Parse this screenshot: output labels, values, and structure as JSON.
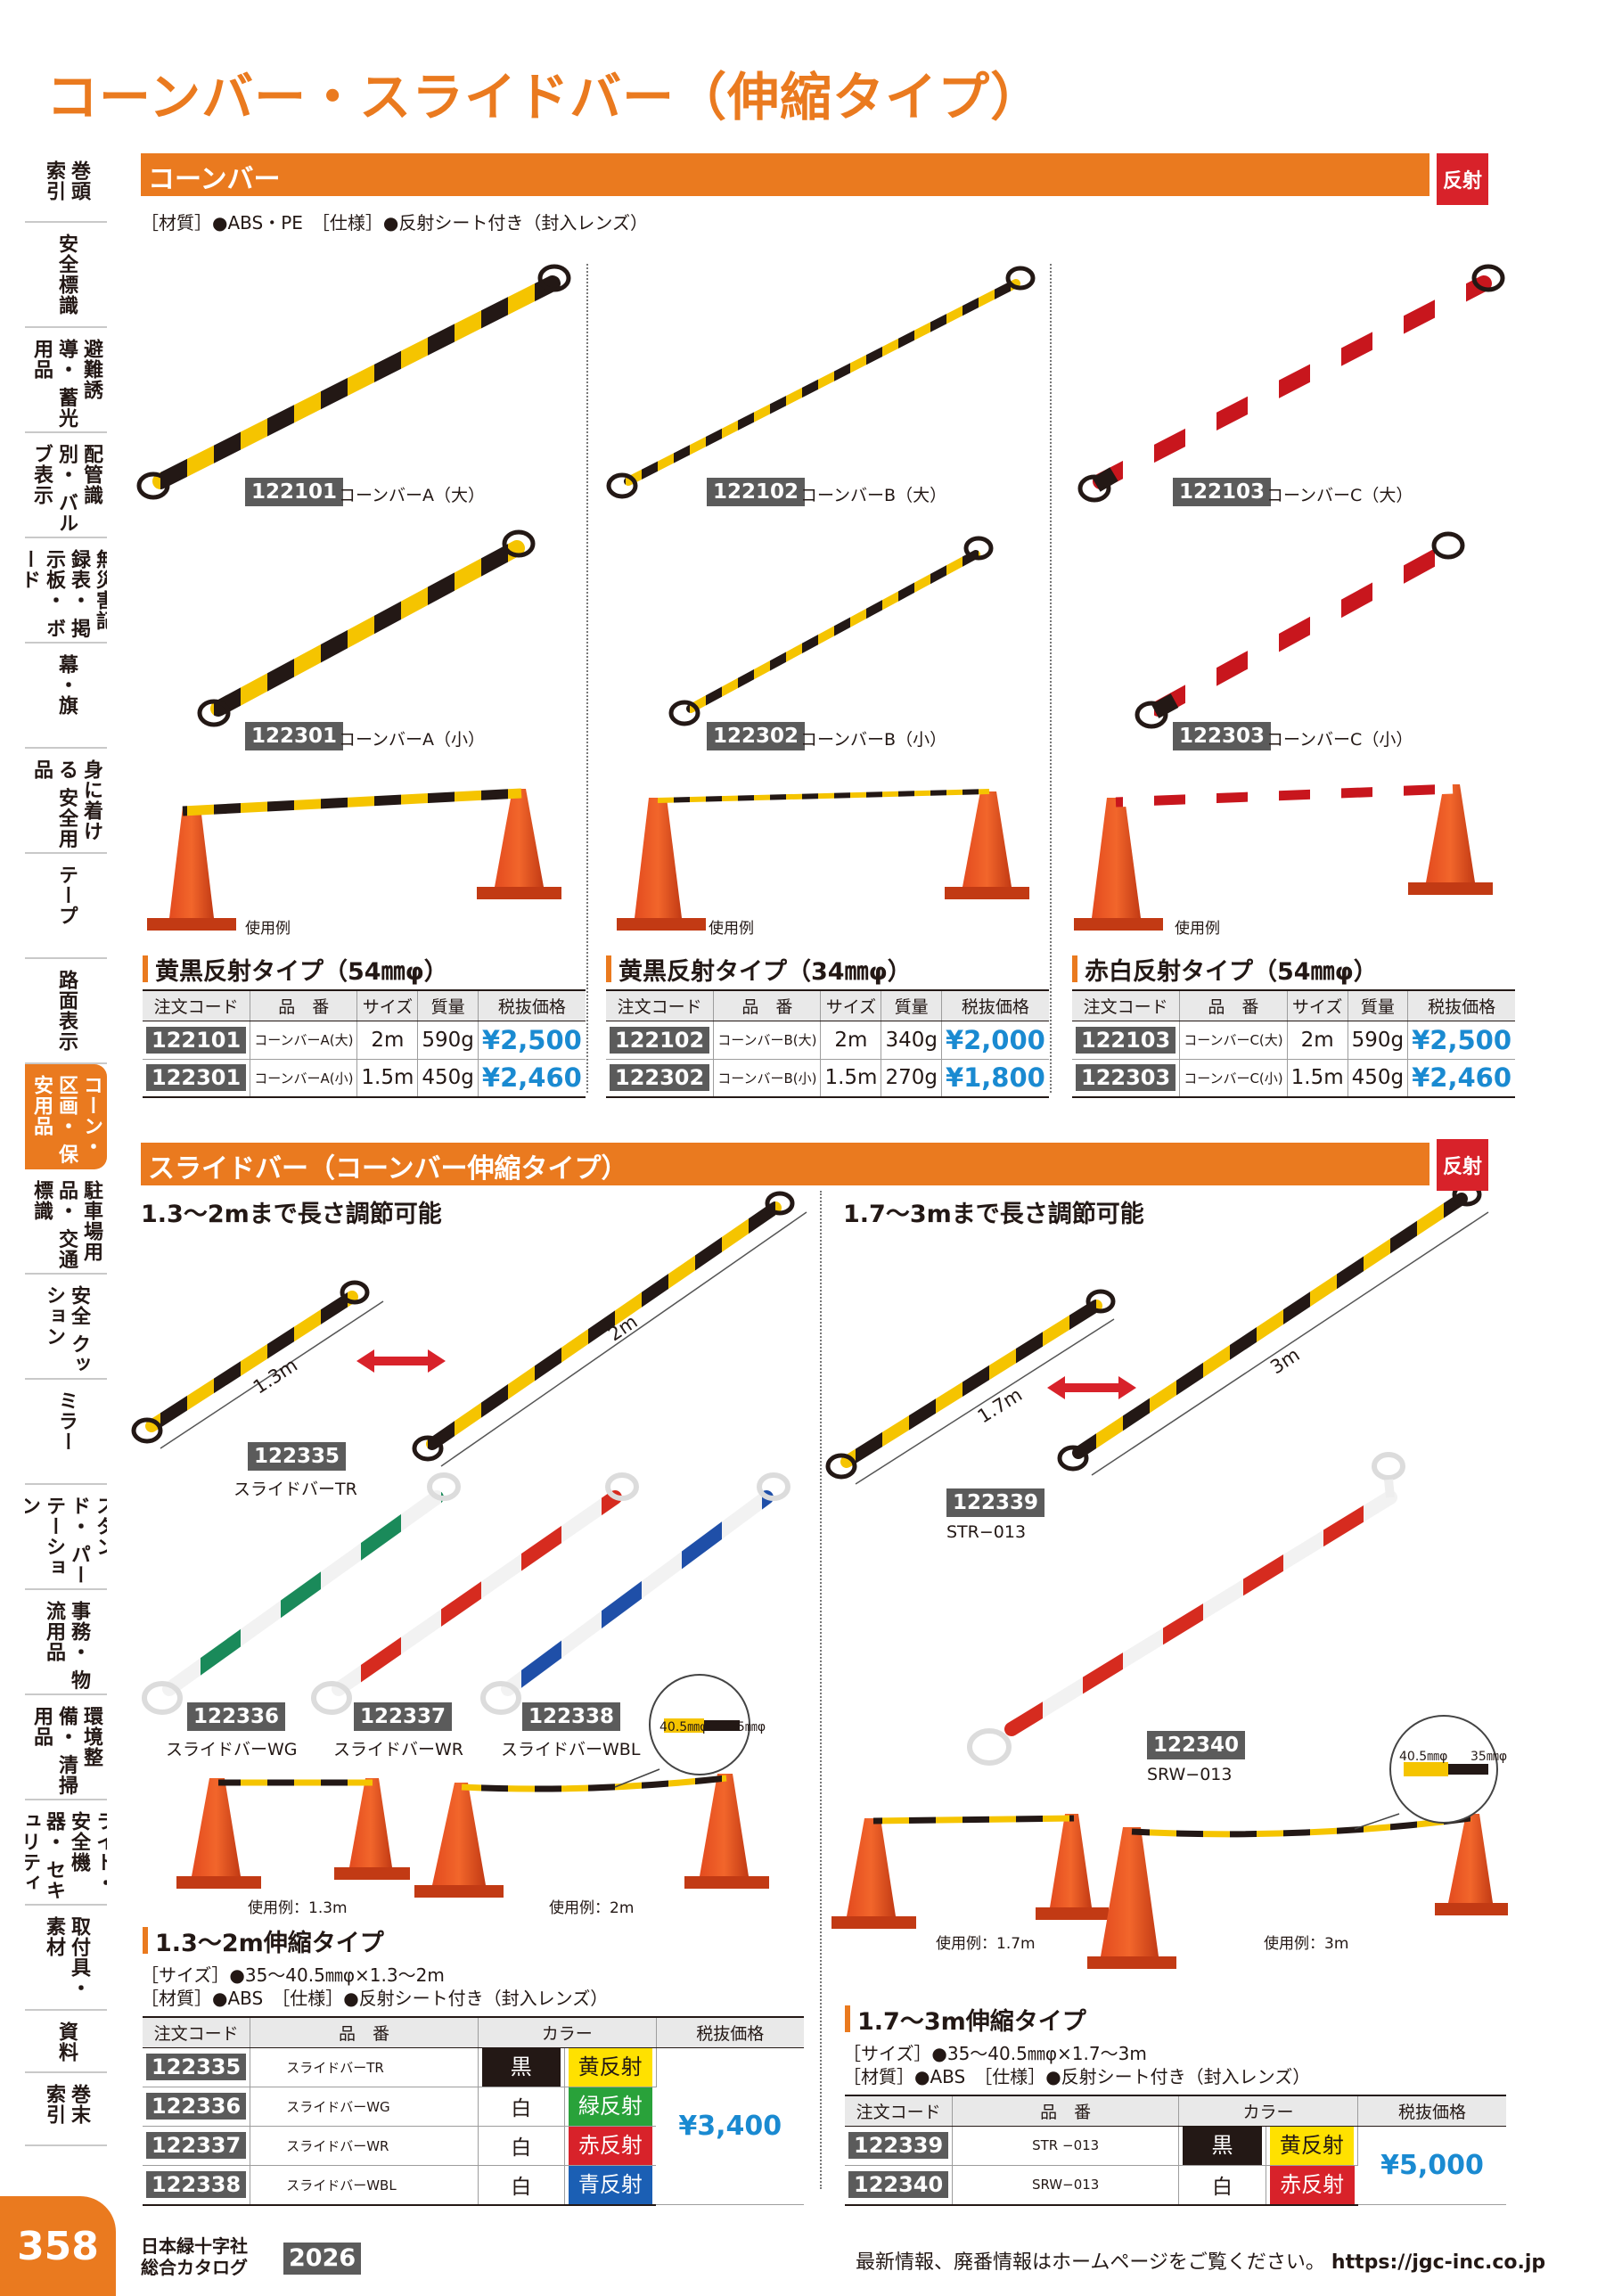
{
  "page_title": "コーンバー・スライドバー（伸縮タイプ）",
  "side_index": [
    {
      "label": "巻頭 索引"
    },
    {
      "label": "安全標識"
    },
    {
      "label": "避難誘導・ 蓄光用品"
    },
    {
      "label": "配管識別・ バルブ表示"
    },
    {
      "label": "無災害記録表・ 掲示板・ ボード"
    },
    {
      "label": "幕・旗"
    },
    {
      "label": "身に着ける 安全用品"
    },
    {
      "label": "テープ"
    },
    {
      "label": "路面表示"
    },
    {
      "label": "コーン・区画・ 保安用品"
    },
    {
      "label": "駐車場用品・ 交通標識"
    },
    {
      "label": "安全 クッション"
    },
    {
      "label": "ミラー"
    },
    {
      "label": "スタンド・ パーテーション"
    },
    {
      "label": "事務・ 物流用品"
    },
    {
      "label": "環境整備・ 清掃用品"
    },
    {
      "label": "ライト・ 安全機器・ セキュリティ"
    },
    {
      "label": "取付具・ 素材"
    },
    {
      "label": "資料"
    },
    {
      "label": "巻末 索引"
    }
  ],
  "cone_bar": {
    "section_title": "コーンバー",
    "badge": "反射",
    "spec": "［材質］●ABS・PE　［仕様］●反射シート付き（封入レンズ）",
    "usage_label": "使用例",
    "products": [
      {
        "code": "122101",
        "name": "コーンバーA（大）"
      },
      {
        "code": "122301",
        "name": "コーンバーA（小）"
      },
      {
        "code": "122102",
        "name": "コーンバーB（大）"
      },
      {
        "code": "122302",
        "name": "コーンバーB（小）"
      },
      {
        "code": "122103",
        "name": "コーンバーC（大）"
      },
      {
        "code": "122303",
        "name": "コーンバーC（小）"
      }
    ],
    "tables": [
      {
        "heading": "黄黒反射タイプ（54㎜φ）",
        "headers": [
          "注文コード",
          "品　番",
          "サイズ",
          "質量",
          "税抜価格"
        ],
        "rows": [
          [
            "122101",
            "コーンバーA(大)",
            "2m",
            "590g",
            "¥2,500"
          ],
          [
            "122301",
            "コーンバーA(小)",
            "1.5m",
            "450g",
            "¥2,460"
          ]
        ]
      },
      {
        "heading": "黄黒反射タイプ（34㎜φ）",
        "headers": [
          "注文コード",
          "品　番",
          "サイズ",
          "質量",
          "税抜価格"
        ],
        "rows": [
          [
            "122102",
            "コーンバーB(大)",
            "2m",
            "340g",
            "¥2,000"
          ],
          [
            "122302",
            "コーンバーB(小)",
            "1.5m",
            "270g",
            "¥1,800"
          ]
        ]
      },
      {
        "heading": "赤白反射タイプ（54㎜φ）",
        "headers": [
          "注文コード",
          "品　番",
          "サイズ",
          "質量",
          "税抜価格"
        ],
        "rows": [
          [
            "122103",
            "コーンバーC(大)",
            "2m",
            "590g",
            "¥2,500"
          ],
          [
            "122303",
            "コーンバーC(小)",
            "1.5m",
            "450g",
            "¥2,460"
          ]
        ]
      }
    ]
  },
  "slide_bar": {
    "section_title": "スライドバー（コーンバー伸縮タイプ）",
    "badge": "反射",
    "left_heading": "1.3〜2mまで長さ調節可能",
    "right_heading": "1.7〜3mまで長さ調節可能",
    "len_labels": [
      "1.3m",
      "2m",
      "1.7m",
      "3m"
    ],
    "diameter_labels": [
      "40.5㎜φ",
      "35㎜φ"
    ],
    "products": [
      {
        "code": "122335",
        "name": "スライドバーTR"
      },
      {
        "code": "122336",
        "name": "スライドバーWG"
      },
      {
        "code": "122337",
        "name": "スライドバーWR"
      },
      {
        "code": "122338",
        "name": "スライドバーWBL"
      },
      {
        "code": "122339",
        "name": "STR−013"
      },
      {
        "code": "122340",
        "name": "SRW−013"
      }
    ],
    "usage_labels": [
      "使用例：1.3m",
      "使用例：2m",
      "使用例：1.7m",
      "使用例：3m"
    ],
    "left_table": {
      "heading": "1.3〜2m伸縮タイプ",
      "spec1": "［サイズ］●35〜40.5㎜φ×1.3〜2m",
      "spec2": "［材質］●ABS　［仕様］●反射シート付き（封入レンズ）",
      "headers": [
        "注文コード",
        "品　番",
        "カラー",
        "税抜価格"
      ],
      "rows": [
        {
          "code": "122335",
          "name": "スライドバーTR",
          "c1": "黒",
          "c2": "黄反射"
        },
        {
          "code": "122336",
          "name": "スライドバーWG",
          "c1": "白",
          "c2": "緑反射"
        },
        {
          "code": "122337",
          "name": "スライドバーWR",
          "c1": "白",
          "c2": "赤反射"
        },
        {
          "code": "122338",
          "name": "スライドバーWBL",
          "c1": "白",
          "c2": "青反射"
        }
      ],
      "price": "¥3,400"
    },
    "right_table": {
      "heading": "1.7〜3m伸縮タイプ",
      "spec1": "［サイズ］●35〜40.5㎜φ×1.7〜3m",
      "spec2": "［材質］●ABS　［仕様］●反射シート付き（封入レンズ）",
      "headers": [
        "注文コード",
        "品　番",
        "カラー",
        "税抜価格"
      ],
      "rows": [
        {
          "code": "122339",
          "name": "STR −013",
          "c1": "黒",
          "c2": "黄反射"
        },
        {
          "code": "122340",
          "name": "SRW−013",
          "c1": "白",
          "c2": "赤反射"
        }
      ],
      "price": "¥5,000"
    }
  },
  "footer": {
    "page_number": "358",
    "catalog_line1": "日本緑十字社",
    "catalog_line2": "総合カタログ",
    "year": "2026",
    "note": "最新情報、廃番情報はホームページをご覧ください。",
    "url": "https://jgc-inc.co.jp"
  },
  "colors": {
    "accent": "#ea7a1f",
    "badge": "#d8222a",
    "price": "#1a8ad1",
    "code_bg": "#5b5b5b"
  }
}
